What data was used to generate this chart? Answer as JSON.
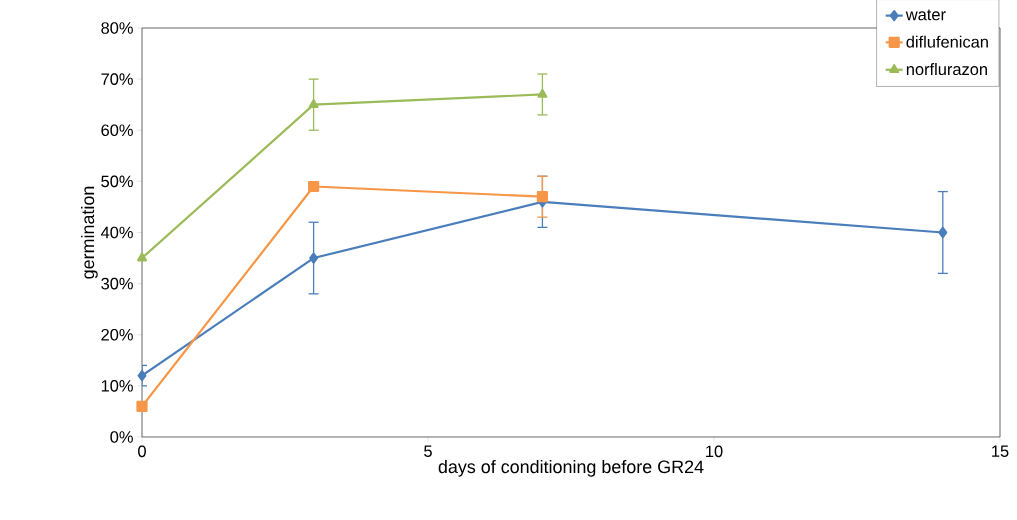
{
  "chart_data": {
    "type": "line",
    "xlabel": "days of conditioning before GR24",
    "ylabel": "germination",
    "xlim": [
      0,
      15
    ],
    "xticks": [
      0,
      5,
      10,
      15
    ],
    "ylim": [
      0,
      80
    ],
    "yticks": [
      {
        "value": 0,
        "label": "0%"
      },
      {
        "value": 10,
        "label": "10%"
      },
      {
        "value": 20,
        "label": "20%"
      },
      {
        "value": 30,
        "label": "30%"
      },
      {
        "value": 40,
        "label": "40%"
      },
      {
        "value": 50,
        "label": "50%"
      },
      {
        "value": 60,
        "label": "60%"
      },
      {
        "value": 70,
        "label": "70%"
      },
      {
        "value": 80,
        "label": "80%"
      }
    ],
    "grid": false,
    "legend": "top right",
    "series": [
      {
        "name": "water",
        "color": "#4a7ebb",
        "marker": "diamond",
        "x": [
          0,
          3,
          7,
          14
        ],
        "values": [
          12,
          35,
          46,
          40
        ],
        "errors": [
          2,
          7,
          5,
          8
        ]
      },
      {
        "name": "diflufenican",
        "color": "#f79646",
        "marker": "square",
        "x": [
          0,
          3,
          7
        ],
        "values": [
          6,
          49,
          47
        ],
        "errors": [
          null,
          null,
          4
        ]
      },
      {
        "name": "norflurazon",
        "color": "#9bbb59",
        "marker": "triangle",
        "x": [
          0,
          3,
          7
        ],
        "values": [
          35,
          65,
          67
        ],
        "errors": [
          null,
          5,
          4
        ]
      }
    ]
  }
}
